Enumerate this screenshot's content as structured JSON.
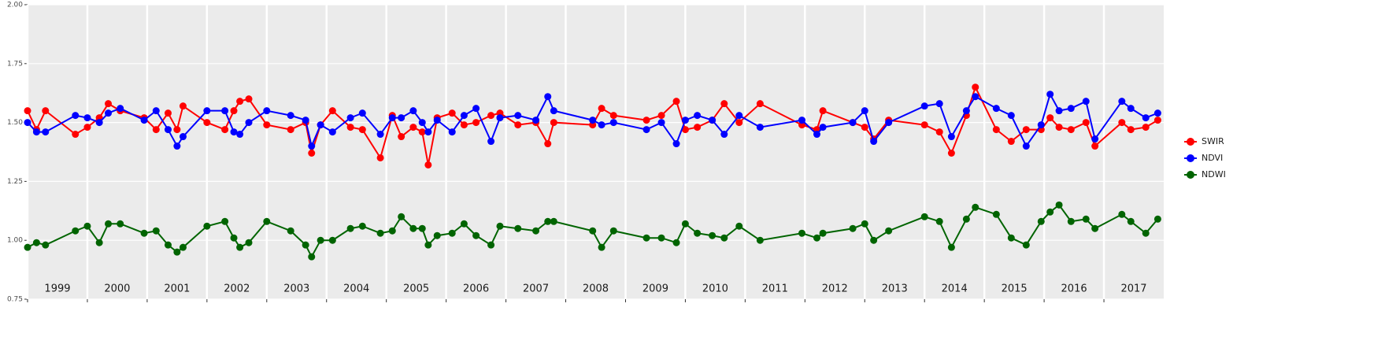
{
  "chart_data": {
    "type": "line",
    "x": [
      1999.0,
      1999.15,
      1999.3,
      1999.8,
      2000.0,
      2000.2,
      2000.35,
      2000.55,
      2000.95,
      2001.15,
      2001.35,
      2001.5,
      2001.6,
      2002.0,
      2002.3,
      2002.45,
      2002.55,
      2002.7,
      2003.0,
      2003.4,
      2003.65,
      2003.75,
      2003.9,
      2004.1,
      2004.4,
      2004.6,
      2004.9,
      2005.1,
      2005.25,
      2005.45,
      2005.6,
      2005.7,
      2005.85,
      2006.1,
      2006.3,
      2006.5,
      2006.75,
      2006.9,
      2007.2,
      2007.5,
      2007.7,
      2007.8,
      2008.45,
      2008.6,
      2008.8,
      2009.35,
      2009.6,
      2009.85,
      2010.0,
      2010.2,
      2010.45,
      2010.65,
      2010.9,
      2011.25,
      2011.95,
      2012.2,
      2012.3,
      2012.8,
      2013.0,
      2013.15,
      2013.4,
      2014.0,
      2014.25,
      2014.45,
      2014.7,
      2014.85,
      2015.2,
      2015.45,
      2015.7,
      2015.95,
      2016.1,
      2016.25,
      2016.45,
      2016.7,
      2016.85,
      2017.3,
      2017.45,
      2017.7,
      2017.9
    ],
    "series": [
      {
        "name": "SWIR",
        "color": "#ff0000",
        "values": [
          1.55,
          1.47,
          1.55,
          1.45,
          1.48,
          1.52,
          1.58,
          1.55,
          1.52,
          1.47,
          1.54,
          1.47,
          1.57,
          1.5,
          1.47,
          1.55,
          1.59,
          1.6,
          1.49,
          1.47,
          1.5,
          1.37,
          1.49,
          1.55,
          1.48,
          1.47,
          1.35,
          1.53,
          1.44,
          1.48,
          1.46,
          1.32,
          1.52,
          1.54,
          1.49,
          1.5,
          1.53,
          1.54,
          1.49,
          1.5,
          1.41,
          1.5,
          1.49,
          1.56,
          1.53,
          1.51,
          1.53,
          1.59,
          1.47,
          1.48,
          1.51,
          1.58,
          1.5,
          1.58,
          1.49,
          1.47,
          1.55,
          1.5,
          1.48,
          1.43,
          1.51,
          1.49,
          1.46,
          1.37,
          1.53,
          1.65,
          1.47,
          1.42,
          1.47,
          1.47,
          1.52,
          1.48,
          1.47,
          1.5,
          1.4,
          1.5,
          1.47,
          1.48,
          1.51
        ]
      },
      {
        "name": "NDVI",
        "color": "#0000ff",
        "values": [
          1.5,
          1.46,
          1.46,
          1.53,
          1.52,
          1.5,
          1.54,
          1.56,
          1.51,
          1.55,
          1.47,
          1.4,
          1.44,
          1.55,
          1.55,
          1.46,
          1.45,
          1.5,
          1.55,
          1.53,
          1.51,
          1.4,
          1.49,
          1.46,
          1.52,
          1.54,
          1.45,
          1.52,
          1.52,
          1.55,
          1.5,
          1.46,
          1.51,
          1.46,
          1.53,
          1.56,
          1.42,
          1.52,
          1.53,
          1.51,
          1.61,
          1.55,
          1.51,
          1.49,
          1.5,
          1.47,
          1.5,
          1.41,
          1.51,
          1.53,
          1.51,
          1.45,
          1.53,
          1.48,
          1.51,
          1.45,
          1.48,
          1.5,
          1.55,
          1.42,
          1.5,
          1.57,
          1.58,
          1.44,
          1.55,
          1.61,
          1.56,
          1.53,
          1.4,
          1.49,
          1.62,
          1.55,
          1.56,
          1.59,
          1.43,
          1.59,
          1.56,
          1.52,
          1.54
        ]
      },
      {
        "name": "NDWI",
        "color": "#006400",
        "values": [
          0.97,
          0.99,
          0.98,
          1.04,
          1.06,
          0.99,
          1.07,
          1.07,
          1.03,
          1.04,
          0.98,
          0.95,
          0.97,
          1.06,
          1.08,
          1.01,
          0.97,
          0.99,
          1.08,
          1.04,
          0.98,
          0.93,
          1.0,
          1.0,
          1.05,
          1.06,
          1.03,
          1.04,
          1.1,
          1.05,
          1.05,
          0.98,
          1.02,
          1.03,
          1.07,
          1.02,
          0.98,
          1.06,
          1.05,
          1.04,
          1.08,
          1.08,
          1.04,
          0.97,
          1.04,
          1.01,
          1.01,
          0.99,
          1.07,
          1.03,
          1.02,
          1.01,
          1.06,
          1.0,
          1.03,
          1.01,
          1.03,
          1.05,
          1.07,
          1.0,
          1.04,
          1.1,
          1.08,
          0.97,
          1.09,
          1.14,
          1.11,
          1.01,
          0.98,
          1.08,
          1.12,
          1.15,
          1.08,
          1.09,
          1.05,
          1.11,
          1.08,
          1.03,
          1.09
        ]
      }
    ],
    "xlim": [
      1999,
      2018
    ],
    "xticks": [
      1999,
      2000,
      2001,
      2002,
      2003,
      2004,
      2005,
      2006,
      2007,
      2008,
      2009,
      2010,
      2011,
      2012,
      2013,
      2014,
      2015,
      2016,
      2017
    ],
    "ylim": [
      0.75,
      2.0
    ],
    "yticks": [
      {
        "value": 0.75,
        "label": "0.75"
      },
      {
        "value": 1.0,
        "label": "1.00"
      },
      {
        "value": 1.25,
        "label": "1.25"
      },
      {
        "value": 1.5,
        "label": "1.50"
      },
      {
        "value": 1.75,
        "label": "1.75"
      },
      {
        "value": 2.0,
        "label": "2.00"
      }
    ],
    "grid": true,
    "legend": "right"
  }
}
